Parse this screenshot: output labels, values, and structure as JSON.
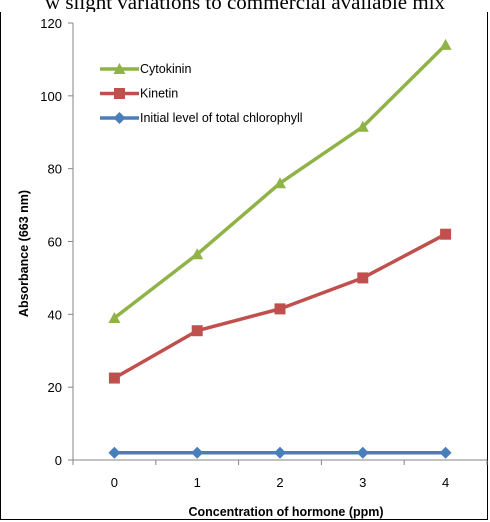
{
  "top_caption": "w slight variations to commercial available mix",
  "chart_data": {
    "type": "line",
    "x": [
      0,
      1,
      2,
      3,
      4
    ],
    "xlabel": "Concentration of hormone (ppm)",
    "ylabel": "Absorbance (663 nm)",
    "ylim": [
      0,
      120
    ],
    "yticks": [
      0,
      20,
      40,
      60,
      80,
      100,
      120
    ],
    "xticks": [
      0,
      1,
      2,
      3,
      4
    ],
    "legend_position": "top-left",
    "grid": false,
    "series": [
      {
        "name": "Cytokinin",
        "values": [
          39,
          56.5,
          76,
          91.5,
          114
        ],
        "color": "#8fb347",
        "marker": "triangle"
      },
      {
        "name": "Kinetin",
        "values": [
          22.5,
          35.5,
          41.5,
          50,
          62
        ],
        "color": "#c0504d",
        "marker": "square"
      },
      {
        "name": "Initial level of total chlorophyll",
        "values": [
          2,
          2,
          2,
          2,
          2
        ],
        "color": "#4a7ebb",
        "marker": "diamond"
      }
    ]
  }
}
